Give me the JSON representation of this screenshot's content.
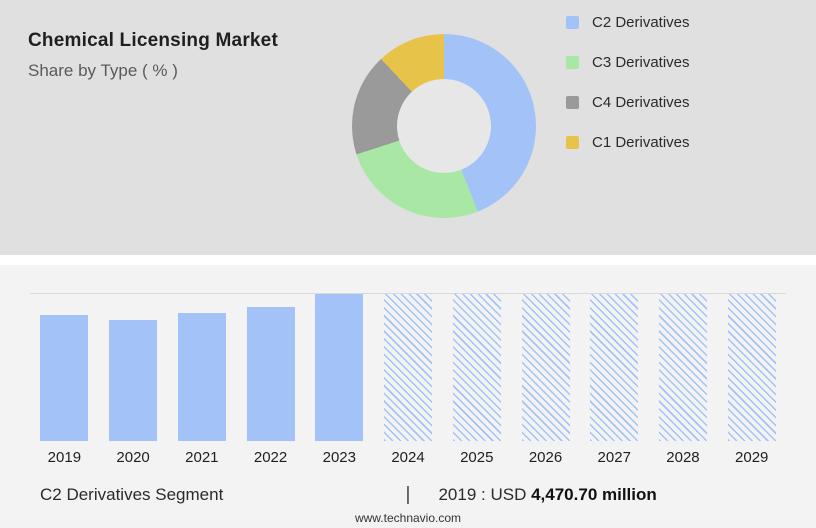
{
  "header": {
    "title": "Chemical Licensing Market",
    "subtitle": "Share by Type ( % )"
  },
  "legend": {
    "items": [
      {
        "label": "C2 Derivatives",
        "color": "#a3c2f7"
      },
      {
        "label": "C3 Derivatives",
        "color": "#a9e7a4"
      },
      {
        "label": "C4 Derivatives",
        "color": "#9a9a9a"
      },
      {
        "label": "C1 Derivatives",
        "color": "#e8c34a"
      }
    ]
  },
  "chart_data": [
    {
      "type": "pie",
      "title": "Chemical Licensing Market - Share by Type ( % )",
      "labels": [
        "C2 Derivatives",
        "C3 Derivatives",
        "C4 Derivatives",
        "C1 Derivatives"
      ],
      "values": [
        44,
        26,
        18,
        12
      ],
      "colors": [
        "#a3c2f7",
        "#a9e7a4",
        "#9a9a9a",
        "#e8c34a"
      ],
      "style": "donut",
      "legend_position": "right"
    },
    {
      "type": "bar",
      "categories": [
        "2019",
        "2020",
        "2021",
        "2022",
        "2023",
        "2024",
        "2025",
        "2026",
        "2027",
        "2028",
        "2029"
      ],
      "values": [
        86,
        82,
        87,
        91,
        100,
        100,
        100,
        100,
        100,
        100,
        100
      ],
      "actual_categories": [
        "2019",
        "2020",
        "2021",
        "2022",
        "2023"
      ],
      "forecast_categories": [
        "2024",
        "2025",
        "2026",
        "2027",
        "2028",
        "2029"
      ],
      "bar_color": "#a3c2f7",
      "forecast_style": "diagonal-hatch",
      "known_values": {
        "2019": "USD 4,470.70 million"
      },
      "xlabel": "",
      "ylabel": "",
      "grid": "top gridline only"
    }
  ],
  "footer": {
    "segment_label": "C2 Derivatives Segment",
    "separator": "|",
    "value_prefix": "2019 : USD",
    "value_bold": "4,470.70 million",
    "website": "www.technavio.com"
  },
  "colors": {
    "top_panel_bg": "#e0e0e0",
    "bottom_panel_bg": "#f3f3f3",
    "gap_bg": "#ffffff",
    "gridline": "#d9d9d9",
    "title_text": "#1f1f1f",
    "subtitle_text": "#5a5a5a"
  }
}
